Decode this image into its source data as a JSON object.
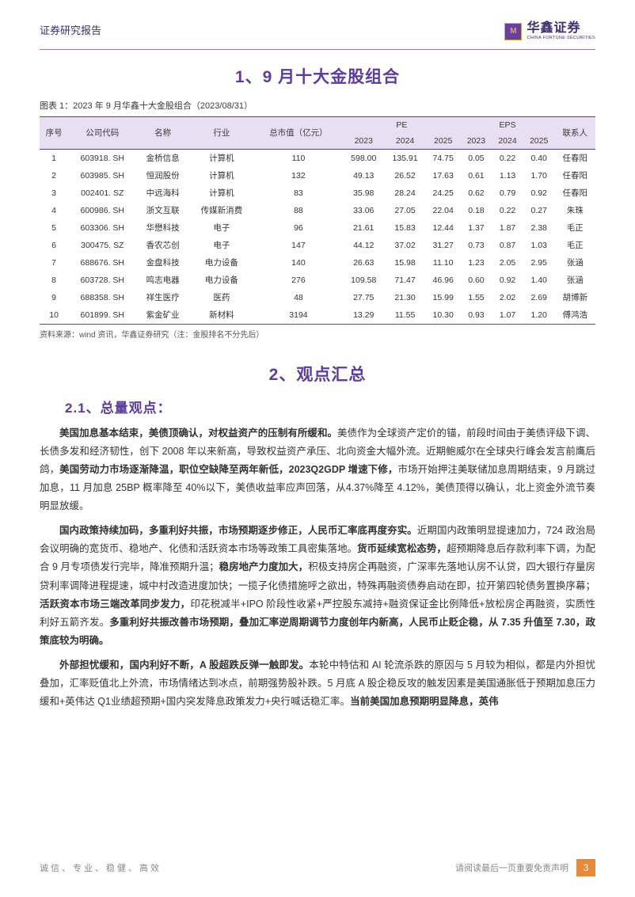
{
  "header": {
    "report_type": "证券研究报告",
    "logo_cn": "华鑫证券",
    "logo_en": "CHINA FORTUNE SECURITIES",
    "logo_mark": "M"
  },
  "colors": {
    "primary": "#5a3d9e",
    "header_bg": "#e8e0f2",
    "accent": "#e68a3a",
    "text": "#333333",
    "muted": "#888888"
  },
  "section1": {
    "title": "1、9 月十大金股组合",
    "caption": "图表 1：2023 年 9 月华鑫十大金股组合（2023/08/31）",
    "columns": {
      "seq": "序号",
      "code": "公司代码",
      "name": "名称",
      "industry": "行业",
      "mktcap": "总市值（亿元）",
      "pe": "PE",
      "eps": "EPS",
      "contact": "联系人",
      "y2023": "2023",
      "y2024": "2024",
      "y2025": "2025"
    },
    "rows": [
      {
        "seq": "1",
        "code": "603918. SH",
        "name": "金桥信息",
        "industry": "计算机",
        "mktcap": "110",
        "pe2023": "598.00",
        "pe2024": "135.91",
        "pe2025": "74.75",
        "eps2023": "0.05",
        "eps2024": "0.22",
        "eps2025": "0.40",
        "contact": "任春阳"
      },
      {
        "seq": "2",
        "code": "603985. SH",
        "name": "恒润股份",
        "industry": "计算机",
        "mktcap": "132",
        "pe2023": "49.13",
        "pe2024": "26.52",
        "pe2025": "17.63",
        "eps2023": "0.61",
        "eps2024": "1.13",
        "eps2025": "1.70",
        "contact": "任春阳"
      },
      {
        "seq": "3",
        "code": "002401. SZ",
        "name": "中远海科",
        "industry": "计算机",
        "mktcap": "83",
        "pe2023": "35.98",
        "pe2024": "28.24",
        "pe2025": "24.25",
        "eps2023": "0.62",
        "eps2024": "0.79",
        "eps2025": "0.92",
        "contact": "任春阳"
      },
      {
        "seq": "4",
        "code": "600986. SH",
        "name": "浙文互联",
        "industry": "传媒新消费",
        "mktcap": "88",
        "pe2023": "33.06",
        "pe2024": "27.05",
        "pe2025": "22.04",
        "eps2023": "0.18",
        "eps2024": "0.22",
        "eps2025": "0.27",
        "contact": "朱珠"
      },
      {
        "seq": "5",
        "code": "603306. SH",
        "name": "华懋科技",
        "industry": "电子",
        "mktcap": "96",
        "pe2023": "21.61",
        "pe2024": "15.83",
        "pe2025": "12.44",
        "eps2023": "1.37",
        "eps2024": "1.87",
        "eps2025": "2.38",
        "contact": "毛正"
      },
      {
        "seq": "6",
        "code": "300475. SZ",
        "name": "香农芯创",
        "industry": "电子",
        "mktcap": "147",
        "pe2023": "44.12",
        "pe2024": "37.02",
        "pe2025": "31.27",
        "eps2023": "0.73",
        "eps2024": "0.87",
        "eps2025": "1.03",
        "contact": "毛正"
      },
      {
        "seq": "7",
        "code": "688676. SH",
        "name": "金盘科技",
        "industry": "电力设备",
        "mktcap": "140",
        "pe2023": "26.63",
        "pe2024": "15.98",
        "pe2025": "11.10",
        "eps2023": "1.23",
        "eps2024": "2.05",
        "eps2025": "2.95",
        "contact": "张涵"
      },
      {
        "seq": "8",
        "code": "603728. SH",
        "name": "鸣志电器",
        "industry": "电力设备",
        "mktcap": "276",
        "pe2023": "109.58",
        "pe2024": "71.47",
        "pe2025": "46.96",
        "eps2023": "0.60",
        "eps2024": "0.92",
        "eps2025": "1.40",
        "contact": "张涵"
      },
      {
        "seq": "9",
        "code": "688358. SH",
        "name": "祥生医疗",
        "industry": "医药",
        "mktcap": "48",
        "pe2023": "27.75",
        "pe2024": "21.30",
        "pe2025": "15.99",
        "eps2023": "1.55",
        "eps2024": "2.02",
        "eps2025": "2.69",
        "contact": "胡博新"
      },
      {
        "seq": "10",
        "code": "601899. SH",
        "name": "紫金矿业",
        "industry": "新材料",
        "mktcap": "3194",
        "pe2023": "13.29",
        "pe2024": "11.55",
        "pe2025": "10.30",
        "eps2023": "0.93",
        "eps2024": "1.07",
        "eps2025": "1.20",
        "contact": "傅鸿浩"
      }
    ],
    "source": "资料来源：wind 资讯，华鑫证券研究（注：金股排名不分先后）"
  },
  "section2": {
    "title": "2、观点汇总",
    "sub1": {
      "title": "2.1、总量观点：",
      "p1_b1": "美国加息基本结束，美债顶确认，对权益资产的压制有所缓和。",
      "p1_t1": "美债作为全球资产定价的锚，前段时间由于美债评级下调、长债多发和经济韧性，创下 2008 年以来新高，导致权益资产承压、北向资金大幅外流。近期鲍威尔在全球央行峰会发言前鹰后鸽，",
      "p1_b2": "美国劳动力市场逐渐降温，职位空缺降至两年新低，2023Q2GDP 增速下修，",
      "p1_t2": "市场开始押注美联储加息周期结束，9 月跳过加息，11 月加息 25BP 概率降至 40%以下，美债收益率应声回落，从4.37%降至 4.12%，美债顶得以确认，北上资金外流节奏明显放缓。",
      "p2_b1": "国内政策持续加码，多重利好共振，市场预期逐步修正，人民币汇率底再度夯实。",
      "p2_t1": "近期国内政策明显提速加力，724 政治局会议明确的宽货币、稳地产、化债和活跃资本市场等政策工具密集落地。",
      "p2_b2": "货币延续宽松态势，",
      "p2_t2": "超预期降息后存款利率下调，为配合 9 月专项债发行完毕，降准预期升温；",
      "p2_b3": "稳房地产力度加大，",
      "p2_t3": "积极支持房企再融资，广深率先落地认房不认贷，四大银行存量房贷利率调降进程提速，城中村改造进度加快；一揽子化债措施呼之欲出，特殊再融资债券启动在即，拉开第四轮债务置换序幕；",
      "p2_b4": "活跃资本市场三端改革同步发力，",
      "p2_t4": "印花税减半+IPO 阶段性收紧+严控股东减持+融资保证金比例降低+放松房企再融资，实质性利好五箭齐发。",
      "p2_b5": "多重利好共振改善市场预期，叠加汇率逆周期调节力度创年内新高，人民币止贬企稳，从 7.35 升值至 7.30，政策底较为明确。",
      "p3_b1": "外部担忧缓和，国内利好不断，A 股超跌反弹一触即发。",
      "p3_t1": "本轮中特估和 AI 轮流杀跌的原因与 5 月较为相似，都是内外担忧叠加，汇率贬值北上外流，市场情绪达到冰点，前期强势股补跌。5 月底 A 股企稳反攻的触发因素是美国通胀低于预期加息压力缓和+英伟达 Q1业绩超预期+国内突发降息政策发力+央行喊话稳汇率。",
      "p3_b2": "当前美国加息预期明显降息，英伟"
    }
  },
  "footer": {
    "left": "诚信、专业、稳健、高效",
    "right": "请阅读最后一页重要免责声明",
    "page": "3"
  }
}
